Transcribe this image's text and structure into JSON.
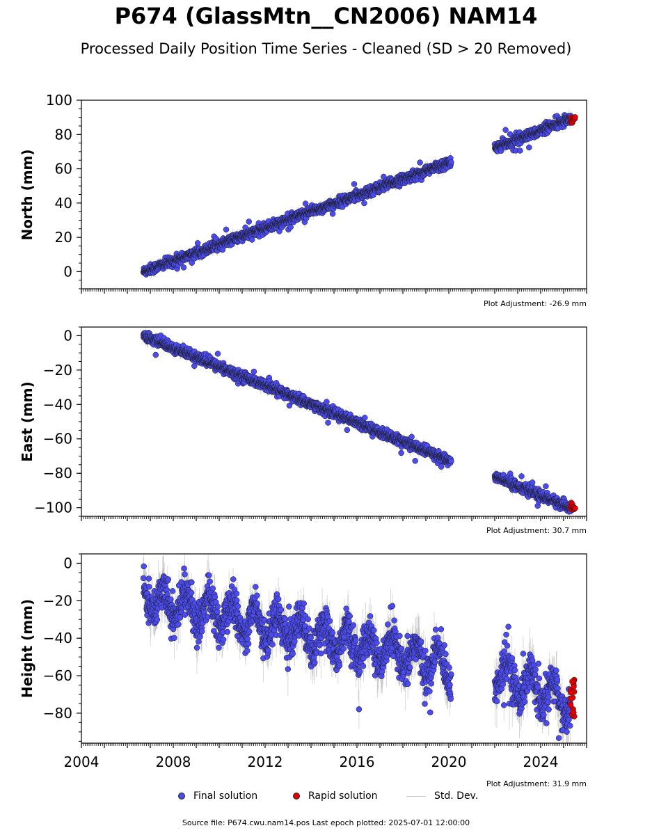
{
  "title": "P674 (GlassMtn__CN2006) NAM14",
  "subtitle": "Processed Daily Position Time Series - Cleaned (SD > 20 Removed)",
  "footer": "Source file: P674.cwu.nam14.pos  Last epoch plotted: 2025-07-01 12:00:00",
  "legend": {
    "final": "Final solution",
    "rapid": "Rapid solution",
    "std": "Std. Dev."
  },
  "colors": {
    "final": "#4b4bf0",
    "rapid": "#e00000",
    "std": "#c8c8c8"
  },
  "chart_data": [
    {
      "type": "scatter",
      "ylabel": "North (mm)",
      "xlim": [
        2004,
        2026
      ],
      "ylim": [
        -10,
        100
      ],
      "yticks": [
        0,
        20,
        40,
        60,
        80,
        100
      ],
      "xticks": [
        2004,
        2008,
        2012,
        2016,
        2020,
        2024
      ],
      "show_xtick_labels": false,
      "adjustment": "Plot Adjustment: -26.9 mm",
      "series": [
        {
          "name": "Final solution",
          "trend": {
            "start": [
              2006.7,
              0
            ],
            "end": [
              2020.1,
              64
            ]
          }
        },
        {
          "name": "Final solution",
          "trend": {
            "start": [
              2022.0,
              72
            ],
            "end": [
              2025.3,
              89
            ]
          }
        },
        {
          "name": "Rapid solution",
          "trend": {
            "start": [
              2025.3,
              88
            ],
            "end": [
              2025.5,
              90
            ]
          }
        }
      ]
    },
    {
      "type": "scatter",
      "ylabel": "East (mm)",
      "xlim": [
        2004,
        2026
      ],
      "ylim": [
        -105,
        5
      ],
      "yticks": [
        0,
        -20,
        -40,
        -60,
        -80,
        -100
      ],
      "xticks": [
        2004,
        2008,
        2012,
        2016,
        2020,
        2024
      ],
      "show_xtick_labels": false,
      "adjustment": "Plot Adjustment: 30.7 mm",
      "series": [
        {
          "name": "Final solution",
          "trend": {
            "start": [
              2006.7,
              0
            ],
            "end": [
              2020.1,
              -73
            ]
          }
        },
        {
          "name": "Final solution",
          "trend": {
            "start": [
              2022.0,
              -82
            ],
            "end": [
              2025.3,
              -100
            ]
          }
        },
        {
          "name": "Rapid solution",
          "trend": {
            "start": [
              2025.3,
              -99
            ],
            "end": [
              2025.5,
              -101
            ]
          }
        }
      ]
    },
    {
      "type": "scatter",
      "ylabel": "Height (mm)",
      "xlim": [
        2004,
        2026
      ],
      "ylim": [
        -96,
        5
      ],
      "yticks": [
        0,
        -20,
        -40,
        -60,
        -80
      ],
      "xticks": [
        2004,
        2008,
        2012,
        2016,
        2020,
        2024
      ],
      "xtick_labels": [
        "2004",
        "2008",
        "2012",
        "2016",
        "2020",
        "2024"
      ],
      "show_xtick_labels": true,
      "adjustment": "Plot Adjustment: 31.9 mm",
      "series": [
        {
          "name": "Final solution",
          "trend": {
            "start": [
              2006.7,
              -18
            ],
            "end": [
              2020.1,
              -55
            ]
          },
          "seasonal_amplitude": 8
        },
        {
          "name": "Final solution",
          "trend": {
            "start": [
              2022.0,
              -58
            ],
            "end": [
              2025.3,
              -75
            ]
          },
          "seasonal_amplitude": 8
        },
        {
          "name": "Rapid solution",
          "values_range": [
            -82,
            -62
          ],
          "x_range": [
            2025.3,
            2025.5
          ]
        }
      ]
    }
  ]
}
